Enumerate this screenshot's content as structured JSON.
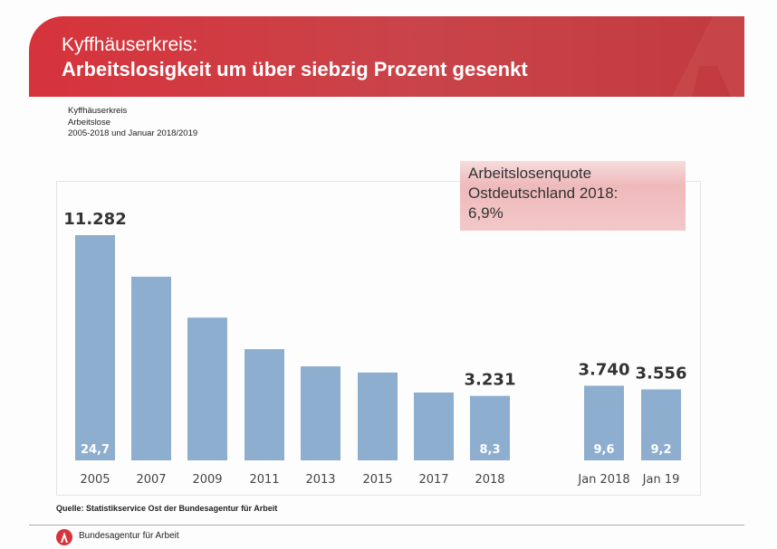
{
  "header": {
    "title_line1": "Kyffhäuserkreis:",
    "title_line2": "Arbeitslosigkeit um über siebzig Prozent gesenkt"
  },
  "subtitle": [
    "Kyffhäuserkreis",
    "Arbeitslose",
    "2005-2018 und Januar 2018/2019"
  ],
  "note": {
    "line1": "Arbeitslosenquote",
    "line2": "Ostdeutschland 2018:",
    "line3": "6,9%"
  },
  "source": "Quelle: Statistikservice Ost der Bundesagentur für Arbeit",
  "footer": {
    "org": "Bundesagentur für Arbeit"
  },
  "colors": {
    "brand_red": "#d7333b",
    "bar": "#8eaed0"
  },
  "chart_data": {
    "type": "bar",
    "categories": [
      "2005",
      "2007",
      "2009",
      "2011",
      "2013",
      "2015",
      "2017",
      "2018",
      "Jan 2018",
      "Jan 19"
    ],
    "values": [
      11282,
      9200,
      7150,
      5570,
      4710,
      4400,
      3400,
      3231,
      3740,
      3556
    ],
    "value_labels": [
      "11.282",
      "",
      "",
      "",
      "",
      "",
      "",
      "3.231",
      "3.740",
      "3.556"
    ],
    "rate_labels": [
      "24,7",
      "",
      "",
      "",
      "",
      "",
      "",
      "8,3",
      "9,6",
      "9,2"
    ],
    "ylim": [
      0,
      12500
    ],
    "grid": false
  }
}
